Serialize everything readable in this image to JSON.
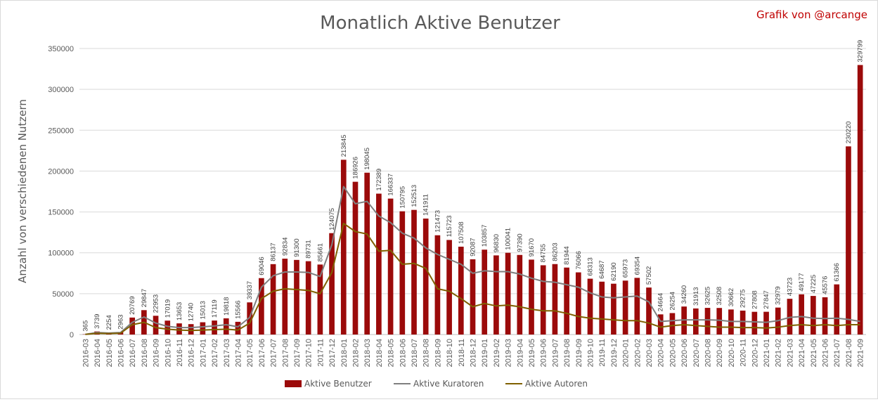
{
  "chart_data": {
    "type": "bar",
    "title": "Monatlich Aktive Benutzer",
    "credit": "Grafik von @arcange",
    "ylabel": "Anzahl von verschiedenen Nutzern",
    "xlabel": "",
    "ylim": [
      0,
      350000
    ],
    "yticks": [
      "0",
      "50000",
      "100000",
      "150000",
      "200000",
      "250000",
      "300000",
      "350000"
    ],
    "grid": true,
    "legend_position": "bottom",
    "categories": [
      "2016-03",
      "2016-04",
      "2016-05",
      "2016-06",
      "2016-07",
      "2016-08",
      "2016-09",
      "2016-10",
      "2016-11",
      "2016-12",
      "2017-01",
      "2017-02",
      "2017-03",
      "2017-04",
      "2017-05",
      "2017-06",
      "2017-07",
      "2017-08",
      "2017-09",
      "2017-10",
      "2017-11",
      "2017-12",
      "2018-01",
      "2018-02",
      "2018-03",
      "2018-04",
      "2018-05",
      "2018-06",
      "2018-07",
      "2018-08",
      "2018-09",
      "2018-10",
      "2018-11",
      "2018-12",
      "2019-01",
      "2019-02",
      "2019-03",
      "2019-04",
      "2019-05",
      "2019-06",
      "2019-07",
      "2019-08",
      "2019-09",
      "2019-10",
      "2019-11",
      "2019-12",
      "2020-01",
      "2020-02",
      "2020-03",
      "2020-04",
      "2020-05",
      "2020-06",
      "2020-07",
      "2020-08",
      "2020-09",
      "2020-10",
      "2020-11",
      "2020-12",
      "2021-01",
      "2021-02",
      "2021-03",
      "2021-04",
      "2021-05",
      "2021-06",
      "2021-07",
      "2021-08",
      "2021-09"
    ],
    "series": [
      {
        "name": "Aktive Benutzer",
        "kind": "bar",
        "color": "#9b0a0a",
        "values": [
          365,
          3739,
          2254,
          2963,
          20769,
          29847,
          22953,
          17019,
          13653,
          12740,
          15013,
          17119,
          19818,
          15566,
          39337,
          69046,
          86137,
          92834,
          91300,
          89731,
          85661,
          124075,
          213845,
          186926,
          198045,
          172389,
          166337,
          150795,
          152513,
          141911,
          121473,
          115723,
          107508,
          92087,
          103857,
          96830,
          100041,
          97390,
          91670,
          84755,
          86203,
          81944,
          76066,
          68313,
          64687,
          62190,
          65973,
          69354,
          57502,
          24664,
          26254,
          34260,
          31913,
          32625,
          32508,
          30662,
          29275,
          27808,
          27847,
          32979,
          43723,
          49177,
          47225,
          45576,
          61366,
          230220,
          329799
        ]
      },
      {
        "name": "Aktive Kuratoren",
        "kind": "line",
        "color": "#7f7f7f",
        "values": [
          300,
          2500,
          1800,
          2500,
          15000,
          21500,
          14000,
          10000,
          8500,
          8500,
          9500,
          10500,
          12000,
          9500,
          21000,
          58000,
          72000,
          76500,
          76500,
          76000,
          71000,
          110000,
          181000,
          160000,
          163000,
          145000,
          137000,
          124000,
          118000,
          106000,
          98000,
          92000,
          86000,
          75000,
          78000,
          77000,
          77000,
          74000,
          69000,
          65000,
          64000,
          61000,
          58000,
          51000,
          46000,
          45000,
          46000,
          47000,
          40000,
          16000,
          17000,
          18000,
          18000,
          18000,
          17500,
          16000,
          16000,
          15500,
          15000,
          17000,
          21000,
          22000,
          20000,
          19500,
          20000,
          18500,
          16000
        ]
      },
      {
        "name": "Aktive Autoren",
        "kind": "line",
        "color": "#7f6000",
        "values": [
          200,
          1500,
          1200,
          1600,
          12000,
          15000,
          8500,
          6500,
          5500,
          5000,
          5500,
          6000,
          6500,
          5500,
          14000,
          44000,
          53000,
          56000,
          55000,
          54000,
          50000,
          76000,
          136000,
          126000,
          123000,
          102000,
          103000,
          86000,
          87000,
          81000,
          56000,
          53000,
          44000,
          34000,
          38000,
          35000,
          36000,
          34000,
          31000,
          29000,
          29000,
          26000,
          22000,
          20000,
          19000,
          18000,
          17000,
          17000,
          14000,
          9000,
          11000,
          12000,
          11000,
          10000,
          9000,
          9000,
          8500,
          8500,
          8000,
          9000,
          11000,
          12000,
          11000,
          12000,
          11000,
          12000,
          12000
        ]
      }
    ]
  }
}
